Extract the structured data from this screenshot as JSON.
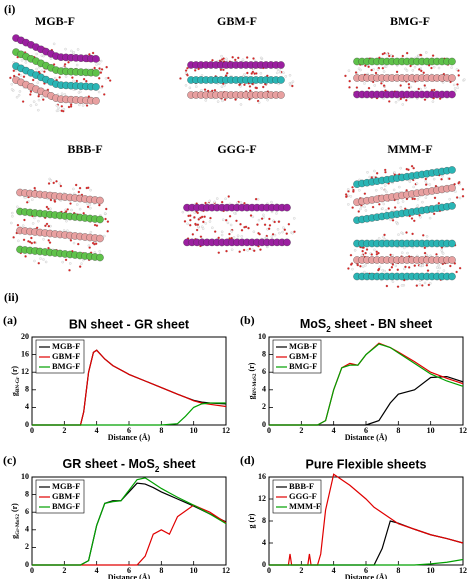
{
  "panel_labels": {
    "top": "(i)",
    "bottom": "(ii)"
  },
  "structures": [
    "MGB-F",
    "GBM-F",
    "BMG-F",
    "BBB-F",
    "GGG-F",
    "MMM-F"
  ],
  "chart_data": [
    {
      "type": "line",
      "panel": "(a)",
      "title": "BN sheet - GR sheet",
      "x_label": "Distance (Å)",
      "y_label": {
        "text": "g",
        "sub": "BN-Gr",
        "rest": " (r)"
      },
      "x": [
        0,
        3,
        3.2,
        3.5,
        3.8,
        4,
        4.5,
        5,
        6,
        7,
        8,
        9,
        9.5,
        10,
        10.5,
        11,
        12
      ],
      "series": [
        {
          "name": "MGB-F",
          "color": "#000000",
          "values": [
            0,
            0,
            3,
            12,
            16.5,
            17,
            15,
            13.5,
            11.5,
            10,
            8.5,
            7,
            6.3,
            5.6,
            5.2,
            5,
            4.8
          ]
        },
        {
          "name": "GBM-F",
          "color": "#e00000",
          "values": [
            0,
            0,
            3,
            12,
            16.5,
            17,
            15,
            13.5,
            11.5,
            10,
            8.5,
            7,
            6.3,
            5.5,
            5,
            4.7,
            4.2
          ]
        },
        {
          "name": "BMG-F",
          "color": "#00a000",
          "values": [
            0,
            0,
            0,
            0,
            0,
            0,
            0,
            0,
            0,
            0,
            0,
            0.3,
            2,
            4,
            4.8,
            5,
            5
          ]
        }
      ],
      "xlim": [
        0,
        12
      ],
      "xticks": [
        0,
        2,
        4,
        6,
        8,
        10,
        12
      ],
      "ylim": [
        0,
        20
      ],
      "yticks": [
        0,
        4,
        8,
        12,
        16,
        20
      ],
      "legend": "upper left"
    },
    {
      "type": "line",
      "panel": "(b)",
      "title": {
        "text": "MoS",
        "sub": "2",
        "rest": " sheet - BN sheet"
      },
      "x_label": "Distance (Å)",
      "y_label": {
        "text": "g",
        "sub": "BN-MoS2",
        "rest": " (r)"
      },
      "x": [
        0,
        3,
        3.5,
        4,
        4.5,
        5,
        5.5,
        6,
        6.8,
        7.5,
        8,
        9,
        10,
        11,
        12
      ],
      "series": [
        {
          "name": "MGB-F",
          "color": "#000000",
          "values": [
            0,
            0,
            0,
            0,
            0,
            0,
            0,
            0,
            0.5,
            2.5,
            3.5,
            4,
            5.4,
            5.5,
            4.9
          ]
        },
        {
          "name": "GBM-F",
          "color": "#e00000",
          "values": [
            0,
            0,
            0.5,
            4,
            6.5,
            7,
            6.8,
            8,
            9.3,
            8.8,
            8.3,
            7.2,
            6,
            5.3,
            4.7
          ]
        },
        {
          "name": "BMG-F",
          "color": "#00a000",
          "values": [
            0,
            0,
            0.5,
            4,
            6.5,
            6.8,
            6.8,
            8,
            9.2,
            8.8,
            8.2,
            7,
            5.8,
            5,
            4.4
          ]
        }
      ],
      "xlim": [
        0,
        12
      ],
      "xticks": [
        0,
        2,
        4,
        6,
        8,
        10,
        12
      ],
      "ylim": [
        0,
        10
      ],
      "yticks": [
        0,
        2,
        4,
        6,
        8,
        10
      ],
      "legend": "upper left"
    },
    {
      "type": "line",
      "panel": "(c)",
      "title": {
        "text": "GR sheet - MoS",
        "sub": "2",
        "rest": " sheet"
      },
      "x_label": "Distance (Å)",
      "y_label": {
        "text": "g",
        "sub": "Gr-MoS2",
        "rest": " (r)"
      },
      "x": [
        0,
        3,
        3.5,
        4,
        4.5,
        5,
        5.5,
        6,
        6.5,
        7,
        7.5,
        8,
        8.5,
        9,
        10,
        11,
        12
      ],
      "series": [
        {
          "name": "MGB-F",
          "color": "#000000",
          "values": [
            0,
            0,
            0.5,
            4.5,
            7,
            7.3,
            7.3,
            8.3,
            9.3,
            9.2,
            8.8,
            8.3,
            7.9,
            7.5,
            6.7,
            5.8,
            4.9
          ]
        },
        {
          "name": "GBM-F",
          "color": "#e00000",
          "values": [
            0,
            0,
            0,
            0,
            0,
            0,
            0,
            0,
            0,
            1,
            3.5,
            4,
            3.5,
            5.5,
            6.8,
            6,
            4.8
          ]
        },
        {
          "name": "BMG-F",
          "color": "#00a000",
          "values": [
            0,
            0,
            0.5,
            4.5,
            7,
            7.2,
            7.3,
            8.5,
            9.7,
            9.9,
            9.3,
            8.7,
            8.2,
            7.7,
            6.8,
            5.8,
            4.7
          ]
        }
      ],
      "xlim": [
        0,
        12
      ],
      "xticks": [
        0,
        2,
        4,
        6,
        8,
        10,
        12
      ],
      "ylim": [
        0,
        10
      ],
      "yticks": [
        0,
        2,
        4,
        6,
        8,
        10
      ],
      "legend": "upper left"
    },
    {
      "type": "line",
      "panel": "(d)",
      "title": "Pure Flexible sheets",
      "x_label": "Distance (Å)",
      "y_label": "g (r)",
      "x": [
        0,
        1.2,
        1.3,
        1.4,
        2.4,
        2.5,
        2.6,
        3,
        3.2,
        3.5,
        4,
        5,
        6,
        6.5,
        7,
        7.5,
        8,
        9,
        10,
        11,
        12
      ],
      "series": [
        {
          "name": "BBB-F",
          "color": "#000000",
          "values": [
            0,
            0,
            0,
            0,
            0,
            0,
            0,
            0,
            0,
            0,
            0,
            0,
            0,
            0,
            3,
            8,
            7.6,
            6.5,
            5.5,
            4.8,
            4
          ]
        },
        {
          "name": "GGG-F",
          "color": "#e00000",
          "values": [
            0,
            0,
            2,
            0,
            0,
            2,
            0,
            0,
            2,
            10,
            16.5,
            14.5,
            12,
            10.5,
            9.5,
            8.5,
            7.5,
            6.5,
            5.5,
            4.8,
            4
          ]
        },
        {
          "name": "MMM-F",
          "color": "#00a000",
          "values": [
            0,
            0,
            0,
            0,
            0,
            0,
            0,
            0,
            0,
            0,
            0,
            0,
            0,
            0,
            0,
            0,
            0,
            0,
            0.2,
            0.5,
            1
          ]
        }
      ],
      "xlim": [
        0,
        12
      ],
      "xticks": [
        0,
        2,
        4,
        6,
        8,
        10,
        12
      ],
      "ylim": [
        0,
        16
      ],
      "yticks": [
        0,
        4,
        8,
        12,
        16
      ],
      "legend": "upper left"
    }
  ]
}
